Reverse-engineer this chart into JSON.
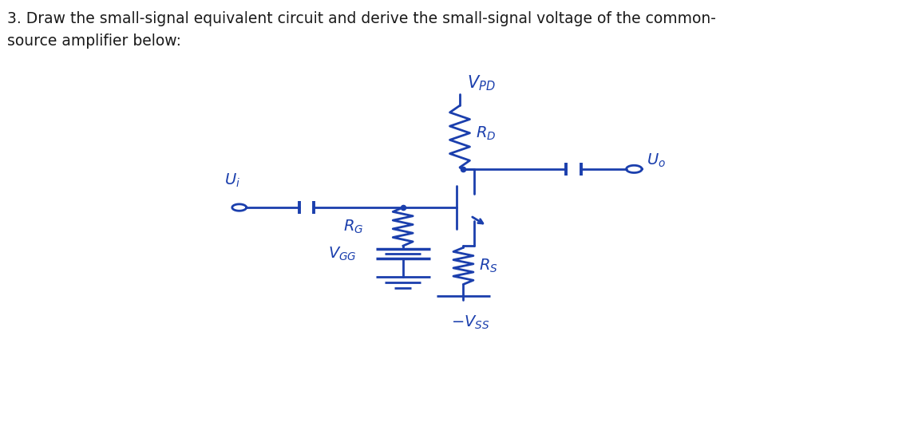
{
  "bg_color": "#ffffff",
  "ink_color": "#1b3fad",
  "title_text": "3. Draw the small-signal equivalent circuit and derive the small-signal voltage of the common-\nsource amplifier below:",
  "title_fontsize": 13.5,
  "title_color": "#1a1a1a",
  "figsize": [
    11.5,
    5.44
  ],
  "dpi": 100
}
